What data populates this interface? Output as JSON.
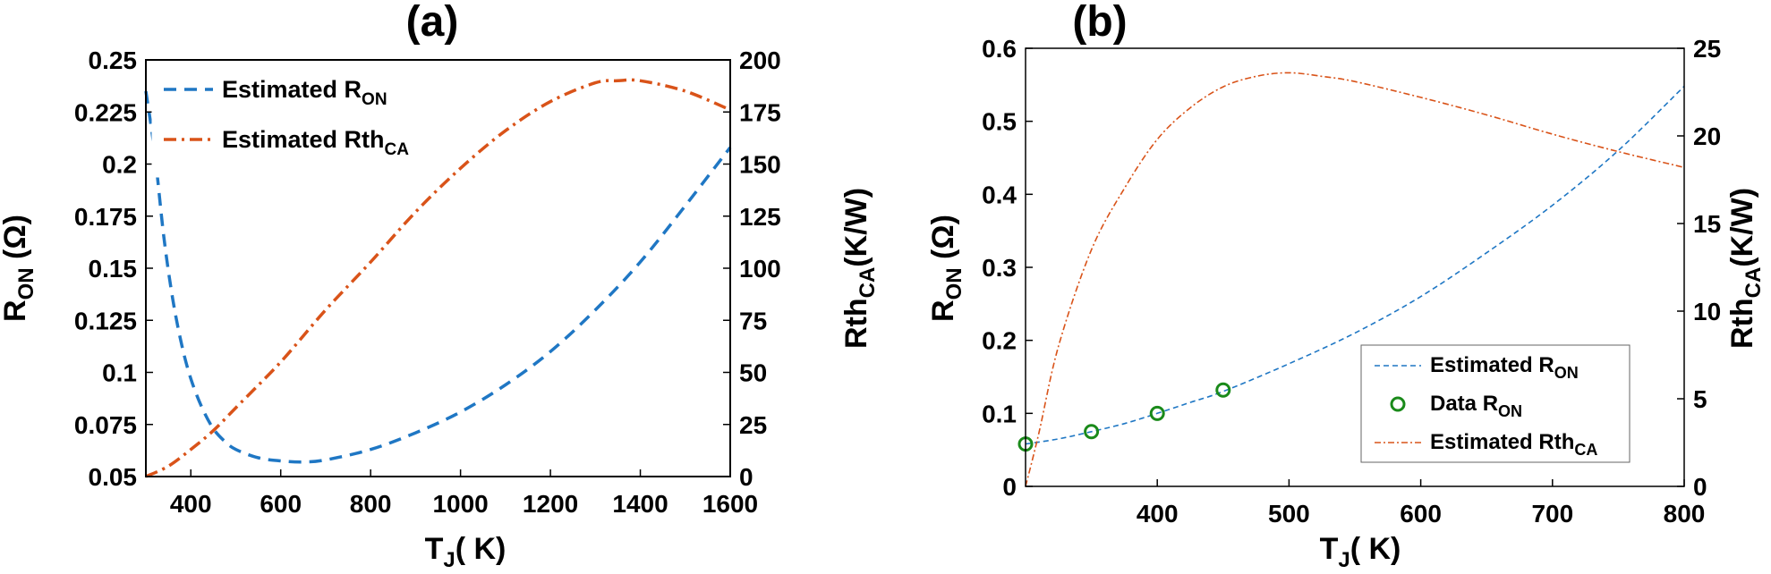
{
  "chart_data": [
    {
      "type": "line",
      "title": "(a)",
      "xlabel": {
        "main": "T",
        "sub": "J",
        "rest": "( K)"
      },
      "ylabel_left": {
        "main": "R",
        "sub": "ON",
        "rest": " (Ω)"
      },
      "ylabel_right": {
        "main": "Rth",
        "sub": "CA",
        "rest": "(K/W)"
      },
      "xlim": [
        300,
        1600
      ],
      "ylim_left": [
        0.05,
        0.25
      ],
      "ylim_right": [
        0,
        200
      ],
      "x_ticks": [
        "400",
        "600",
        "800",
        "1000",
        "1200",
        "1400",
        "1600"
      ],
      "x_tick_values": [
        400,
        600,
        800,
        1000,
        1200,
        1400,
        1600
      ],
      "y_left_ticks": [
        "0.05",
        "0.075",
        "0.1",
        "0.125",
        "0.15",
        "0.175",
        "0.2",
        "0.225",
        "0.25"
      ],
      "y_left_tick_values": [
        0.05,
        0.075,
        0.1,
        0.125,
        0.15,
        0.175,
        0.2,
        0.225,
        0.25
      ],
      "y_right_ticks": [
        "0",
        "25",
        "50",
        "75",
        "100",
        "125",
        "150",
        "175",
        "200"
      ],
      "y_right_tick_values": [
        0,
        25,
        50,
        75,
        100,
        125,
        150,
        175,
        200
      ],
      "legend": [
        {
          "main": "Estimated R",
          "sub": "ON",
          "color": "#1f77c4",
          "style": "dash"
        },
        {
          "main": "Estimated Rth",
          "sub": "CA",
          "color": "#d95319",
          "style": "dashdot"
        }
      ],
      "series": [
        {
          "name": "Estimated R_ON",
          "axis": "left",
          "color": "#1f77c4",
          "x": [
            300,
            320,
            340,
            360,
            380,
            400,
            425,
            450,
            475,
            500,
            550,
            600,
            650,
            700,
            800,
            900,
            1000,
            1100,
            1200,
            1300,
            1400,
            1500,
            1600
          ],
          "y": [
            0.235,
            0.205,
            0.165,
            0.135,
            0.113,
            0.097,
            0.083,
            0.073,
            0.067,
            0.063,
            0.059,
            0.0575,
            0.057,
            0.058,
            0.063,
            0.071,
            0.081,
            0.094,
            0.11,
            0.13,
            0.153,
            0.18,
            0.208
          ]
        },
        {
          "name": "Estimated Rth_CA",
          "axis": "right",
          "color": "#d95319",
          "x": [
            300,
            350,
            400,
            450,
            500,
            600,
            700,
            800,
            900,
            1000,
            1100,
            1200,
            1300,
            1350,
            1400,
            1500,
            1600
          ],
          "y": [
            0,
            5,
            13,
            22,
            33,
            55,
            80,
            103,
            127,
            148,
            166,
            180,
            189,
            190,
            190,
            185,
            176
          ]
        }
      ]
    },
    {
      "type": "line",
      "title": "(b)",
      "xlabel": {
        "main": "T",
        "sub": "J",
        "rest": "( K)"
      },
      "ylabel_left": {
        "main": "R",
        "sub": "ON",
        "rest": " (Ω)"
      },
      "ylabel_right": {
        "main": "Rth",
        "sub": "CA",
        "rest": "(K/W)"
      },
      "xlim": [
        300,
        800
      ],
      "ylim_left": [
        0,
        0.6
      ],
      "ylim_right": [
        0,
        25
      ],
      "x_ticks": [
        "400",
        "500",
        "600",
        "700",
        "800"
      ],
      "x_tick_values": [
        400,
        500,
        600,
        700,
        800
      ],
      "y_left_ticks": [
        "0",
        "0.1",
        "0.2",
        "0.3",
        "0.4",
        "0.5",
        "0.6"
      ],
      "y_left_tick_values": [
        0,
        0.1,
        0.2,
        0.3,
        0.4,
        0.5,
        0.6
      ],
      "y_right_ticks": [
        "0",
        "5",
        "10",
        "15",
        "20",
        "25"
      ],
      "y_right_tick_values": [
        0,
        5,
        10,
        15,
        20,
        25
      ],
      "legend": [
        {
          "main": "Estimated R",
          "sub": "ON",
          "color": "#1f77c4",
          "style": "dash"
        },
        {
          "main": "Data R",
          "sub": "ON",
          "color": "#1a8a1a",
          "style": "marker"
        },
        {
          "main": "Estimated Rth",
          "sub": "CA",
          "color": "#d95319",
          "style": "dashdot"
        }
      ],
      "series": [
        {
          "name": "Estimated R_ON",
          "axis": "left",
          "color": "#1f77c4",
          "x": [
            300,
            325,
            350,
            375,
            400,
            425,
            450,
            500,
            550,
            600,
            650,
            700,
            750,
            800
          ],
          "y": [
            0.058,
            0.065,
            0.075,
            0.086,
            0.1,
            0.115,
            0.13,
            0.168,
            0.21,
            0.26,
            0.32,
            0.385,
            0.46,
            0.548
          ]
        },
        {
          "name": "Data R_ON",
          "axis": "left",
          "color": "#1a8a1a",
          "marker_only": true,
          "x": [
            300,
            350,
            400,
            450
          ],
          "y": [
            0.058,
            0.075,
            0.1,
            0.132
          ]
        },
        {
          "name": "Estimated Rth_CA",
          "axis": "right",
          "color": "#d95319",
          "x": [
            300,
            310,
            325,
            350,
            375,
            400,
            425,
            450,
            475,
            500,
            525,
            550,
            600,
            650,
            700,
            750,
            800
          ],
          "y": [
            0,
            3,
            8,
            13.5,
            17,
            19.8,
            21.6,
            22.8,
            23.4,
            23.6,
            23.4,
            23.1,
            22.2,
            21.2,
            20.1,
            19.1,
            18.2
          ]
        }
      ]
    }
  ]
}
